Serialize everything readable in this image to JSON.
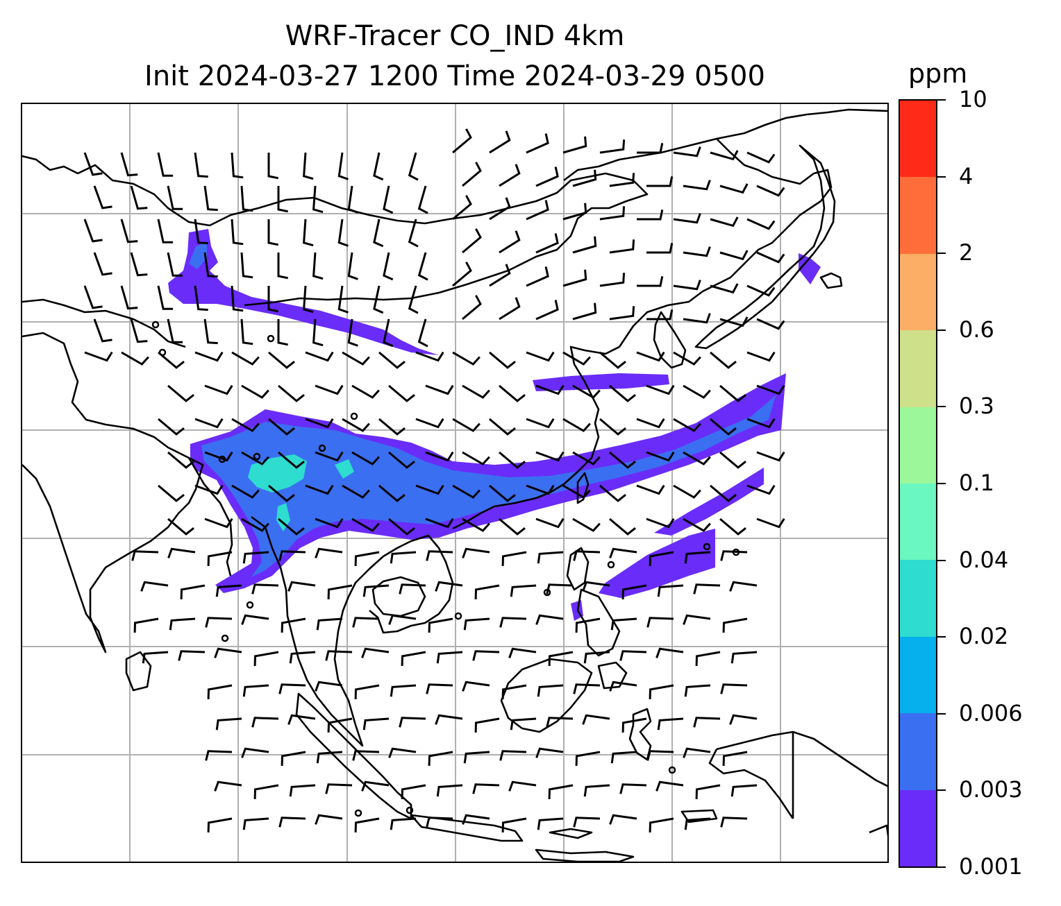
{
  "title_line1": "WRF-Tracer CO_IND 4km",
  "title_line2": "Init 2024-03-27 1200 Time 2024-03-29 0500",
  "colorbar": {
    "unit": "ppm",
    "ticks": [
      "0.001",
      "0.003",
      "0.006",
      "0.02",
      "0.04",
      "0.1",
      "0.3",
      "0.6",
      "2",
      "4",
      "10"
    ],
    "colors": [
      "#6a2cf8",
      "#3b6ff2",
      "#06b0ec",
      "#2edcd0",
      "#6af7c0",
      "#9cf79a",
      "#cfe08a",
      "#fdae66",
      "#ff6e3a",
      "#ff2a18"
    ]
  },
  "map": {
    "gridlines": true,
    "features": [
      "coastlines",
      "country-borders",
      "wind-barbs",
      "tracer-plume"
    ],
    "plume_colors": [
      "#6a2cf8",
      "#3b6ff2",
      "#2edcd0"
    ]
  }
}
